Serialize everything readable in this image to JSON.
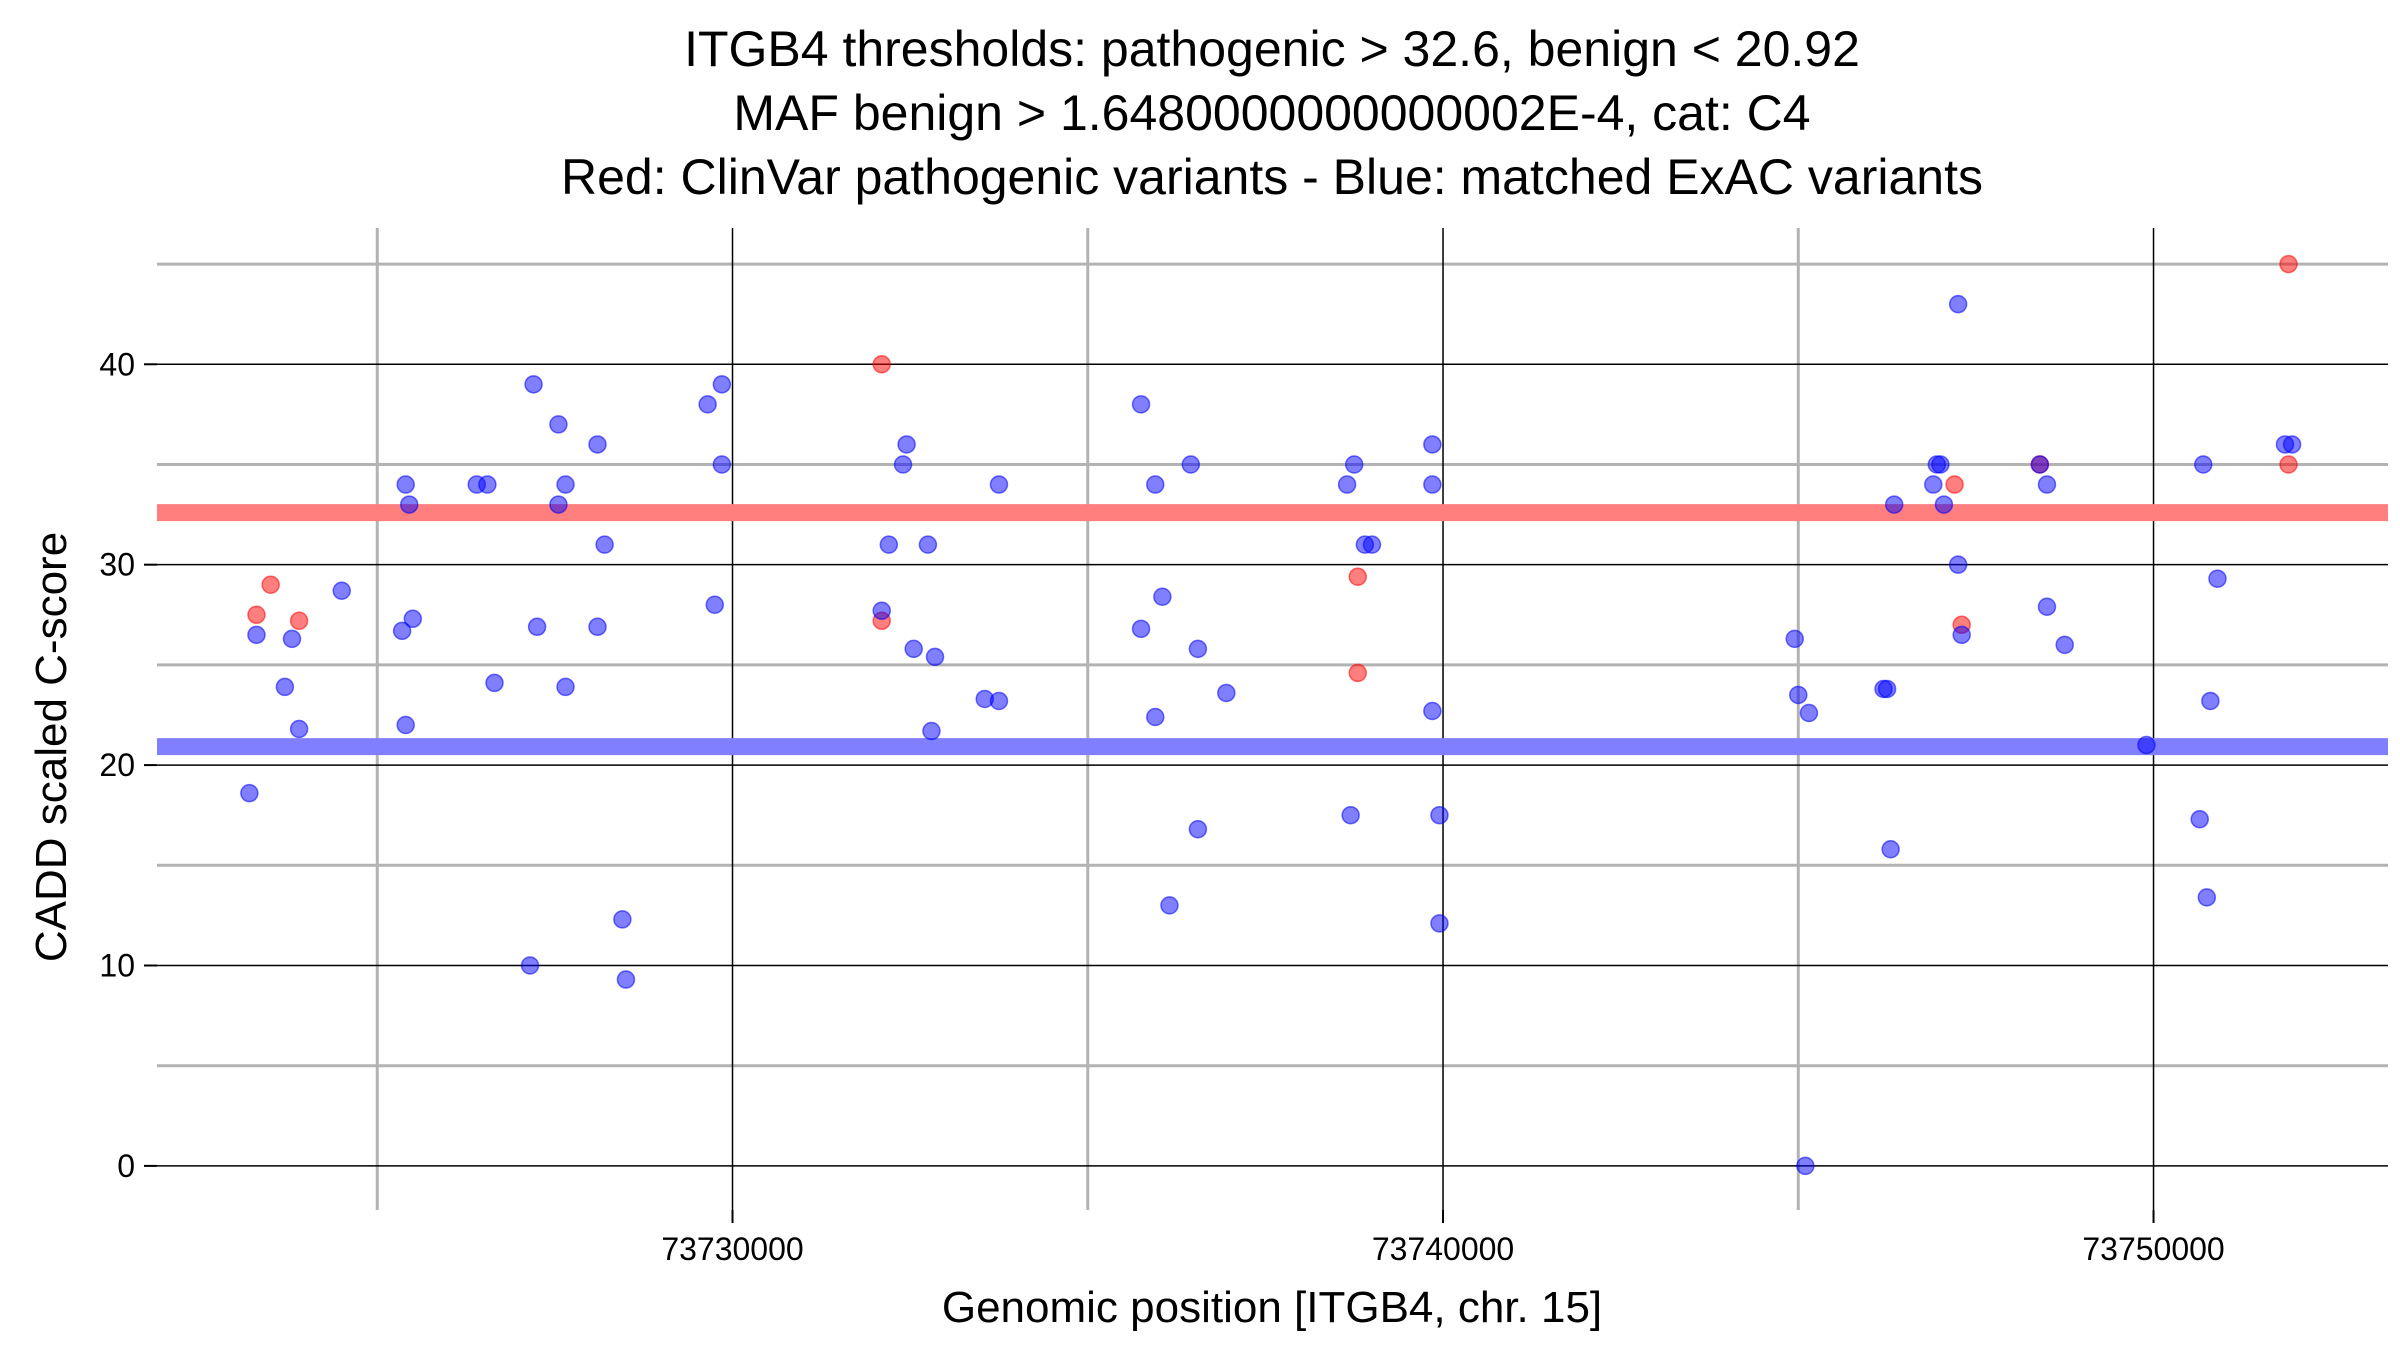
{
  "chart_data": {
    "type": "scatter",
    "title_lines": [
      "ITGB4 thresholds: pathogenic > 32.6, benign < 20.92",
      "MAF benign > 1.6480000000000002E-4, cat: C4",
      "Red: ClinVar pathogenic variants - Blue: matched ExAC variants"
    ],
    "xlabel": "Genomic position [ITGB4, chr. 15]",
    "ylabel": "CADD scaled C-score",
    "xlim": [
      73721900,
      73753300
    ],
    "ylim": [
      -2.2,
      46.8
    ],
    "x_major_ticks": [
      73730000,
      73740000,
      73750000
    ],
    "x_tick_labels": [
      "73730000",
      "73740000",
      "73750000"
    ],
    "x_minor_ticks": [
      73725000,
      73735000,
      73745000
    ],
    "y_major_ticks": [
      0,
      10,
      20,
      30,
      40
    ],
    "y_tick_labels": [
      "0",
      "10",
      "20",
      "30",
      "40"
    ],
    "y_minor_ticks": [
      5,
      15,
      25,
      35,
      45
    ],
    "grid": true,
    "colors": {
      "pathogenic": "#ff0000",
      "benign": "#0000ff",
      "pathogenic_threshold": "#ff7f7f",
      "benign_threshold": "#7f7fff",
      "major_grid": "#000000",
      "minor_grid": "#b3b3b3"
    },
    "thresholds": {
      "pathogenic": 32.6,
      "benign": 20.92
    },
    "series": [
      {
        "key": "pathogenic",
        "color": "#ff0000",
        "points": [
          [
            73723300,
            27.5
          ],
          [
            73723500,
            29.0
          ],
          [
            73723900,
            27.2
          ],
          [
            73732100,
            40.0
          ],
          [
            73732100,
            27.2
          ],
          [
            73738800,
            29.4
          ],
          [
            73738800,
            24.6
          ],
          [
            73747200,
            34.0
          ],
          [
            73747300,
            27.0
          ],
          [
            73748400,
            35.0
          ],
          [
            73751900,
            45.0
          ],
          [
            73751900,
            35.0
          ]
        ]
      },
      {
        "key": "benign",
        "color": "#0000ff",
        "points": [
          [
            73723200,
            18.6
          ],
          [
            73723300,
            26.5
          ],
          [
            73723700,
            23.9
          ],
          [
            73723800,
            26.3
          ],
          [
            73723900,
            21.8
          ],
          [
            73724500,
            28.7
          ],
          [
            73725350,
            26.7
          ],
          [
            73725400,
            34.0
          ],
          [
            73725400,
            22.0
          ],
          [
            73725450,
            33.0
          ],
          [
            73725500,
            27.3
          ],
          [
            73726400,
            34.0
          ],
          [
            73726550,
            34.0
          ],
          [
            73726650,
            24.1
          ],
          [
            73727150,
            10.0
          ],
          [
            73727200,
            39.0
          ],
          [
            73727250,
            26.9
          ],
          [
            73727550,
            37.0
          ],
          [
            73727550,
            33.0
          ],
          [
            73727650,
            34.0
          ],
          [
            73727650,
            23.9
          ],
          [
            73728100,
            36.0
          ],
          [
            73728100,
            26.9
          ],
          [
            73728200,
            31.0
          ],
          [
            73728450,
            12.3
          ],
          [
            73728500,
            9.3
          ],
          [
            73729650,
            38.0
          ],
          [
            73729750,
            28.0
          ],
          [
            73729850,
            39.0
          ],
          [
            73729850,
            35.0
          ],
          [
            73732100,
            27.7
          ],
          [
            73732200,
            31.0
          ],
          [
            73732400,
            35.0
          ],
          [
            73732450,
            36.0
          ],
          [
            73732550,
            25.8
          ],
          [
            73732750,
            31.0
          ],
          [
            73732850,
            25.4
          ],
          [
            73732800,
            21.7
          ],
          [
            73733550,
            23.3
          ],
          [
            73733750,
            23.2
          ],
          [
            73733750,
            34.0
          ],
          [
            73735750,
            38.0
          ],
          [
            73735750,
            26.8
          ],
          [
            73735950,
            22.4
          ],
          [
            73735950,
            34.0
          ],
          [
            73736050,
            28.4
          ],
          [
            73736150,
            13.0
          ],
          [
            73736450,
            35.0
          ],
          [
            73736550,
            25.8
          ],
          [
            73736550,
            16.8
          ],
          [
            73736950,
            23.6
          ],
          [
            73738650,
            34.0
          ],
          [
            73738700,
            17.5
          ],
          [
            73738750,
            35.0
          ],
          [
            73738900,
            31.0
          ],
          [
            73739000,
            31.0
          ],
          [
            73739850,
            36.0
          ],
          [
            73739850,
            34.0
          ],
          [
            73739850,
            22.7
          ],
          [
            73739950,
            17.5
          ],
          [
            73739950,
            12.1
          ],
          [
            73744950,
            26.3
          ],
          [
            73745000,
            23.5
          ],
          [
            73745150,
            22.6
          ],
          [
            73745100,
            0.0
          ],
          [
            73746200,
            23.8
          ],
          [
            73746250,
            23.8
          ],
          [
            73746300,
            15.8
          ],
          [
            73746350,
            33.0
          ],
          [
            73746900,
            34.0
          ],
          [
            73746950,
            35.0
          ],
          [
            73747000,
            35.0
          ],
          [
            73747050,
            33.0
          ],
          [
            73747250,
            43.0
          ],
          [
            73747250,
            30.0
          ],
          [
            73747300,
            26.5
          ],
          [
            73748400,
            35.0
          ],
          [
            73748500,
            34.0
          ],
          [
            73748500,
            27.9
          ],
          [
            73748750,
            26.0
          ],
          [
            73749900,
            21.0
          ],
          [
            73750700,
            35.0
          ],
          [
            73750650,
            17.3
          ],
          [
            73750750,
            13.4
          ],
          [
            73750800,
            23.2
          ],
          [
            73750900,
            29.3
          ],
          [
            73751850,
            36.0
          ],
          [
            73751950,
            36.0
          ]
        ]
      }
    ]
  }
}
